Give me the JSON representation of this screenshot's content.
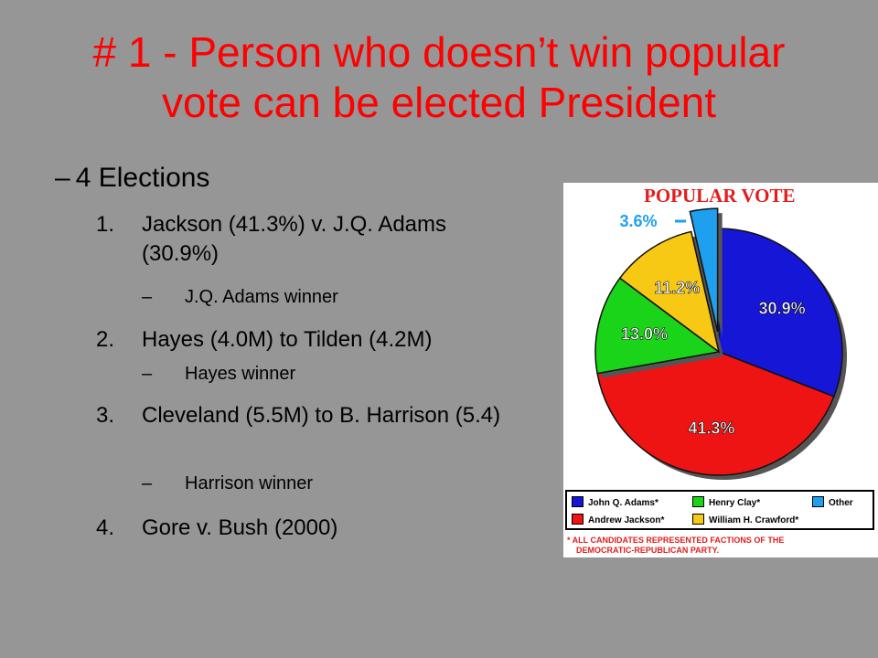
{
  "slide": {
    "title_line1": "# 1 - Person who doesn’t win popular",
    "title_line2": "vote can be elected President",
    "subhead_dash": "–",
    "subhead": "4 Elections",
    "items": [
      {
        "num": "1.",
        "text": "Jackson (41.3%)  v. J.Q. Adams (30.9%)",
        "sub_dash": "–",
        "sub": "J.Q. Adams winner"
      },
      {
        "num": "2.",
        "text": "Hayes (4.0M) to Tilden (4.2M)",
        "sub_dash": "–",
        "sub": "Hayes winner"
      },
      {
        "num": "3.",
        "text": "Cleveland (5.5M) to B. Harrison (5.4)",
        "sub_dash": "–",
        "sub": "Harrison winner"
      },
      {
        "num": "4.",
        "text": "Gore v. Bush (2000)"
      }
    ]
  },
  "chart_data": {
    "type": "pie",
    "title": "POPULAR VOTE",
    "slices": [
      {
        "name": "John Q. Adams*",
        "value": 30.9,
        "label": "30.9%",
        "color": "#1616d6"
      },
      {
        "name": "Andrew Jackson*",
        "value": 41.3,
        "label": "41.3%",
        "color": "#ee1414"
      },
      {
        "name": "Henry Clay*",
        "value": 13.0,
        "label": "13.0%",
        "color": "#19d419"
      },
      {
        "name": "William H. Crawford*",
        "value": 11.2,
        "label": "11.2%",
        "color": "#f7c814"
      },
      {
        "name": "Other",
        "value": 3.6,
        "label": "3.6%",
        "color": "#1ea0ef"
      }
    ],
    "legend_items": [
      "John Q. Adams*",
      "Henry Clay*",
      "Other",
      "Andrew Jackson*",
      "William H. Crawford*"
    ],
    "footnote_line1": "* ALL CANDIDATES REPRESENTED FACTIONS OF THE",
    "footnote_line2": "DEMOCRATIC-REPUBLICAN PARTY."
  }
}
